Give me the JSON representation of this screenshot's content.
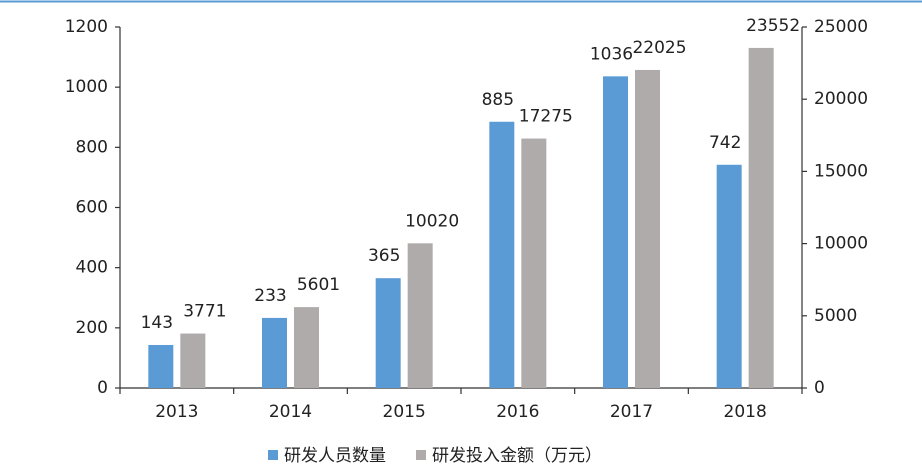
{
  "chart_data": {
    "type": "bar",
    "categories": [
      "2013",
      "2014",
      "2015",
      "2016",
      "2017",
      "2018"
    ],
    "series": [
      {
        "name": "研发人员数量",
        "color": "#5b9bd5",
        "values": [
          143,
          233,
          365,
          885,
          1036,
          742
        ]
      },
      {
        "name": "研发投入金额（万元）",
        "color": "#afabab",
        "axis": "y2",
        "values": [
          3771,
          5601,
          10020,
          17275,
          22025,
          23552
        ]
      }
    ],
    "ylim": [
      0,
      1200
    ],
    "yticks": [
      0,
      200,
      400,
      600,
      800,
      1000,
      1200
    ],
    "y2lim": [
      0,
      25000
    ],
    "y2ticks": [
      0,
      5000,
      10000,
      15000,
      20000,
      25000
    ],
    "legend": "bottom"
  }
}
